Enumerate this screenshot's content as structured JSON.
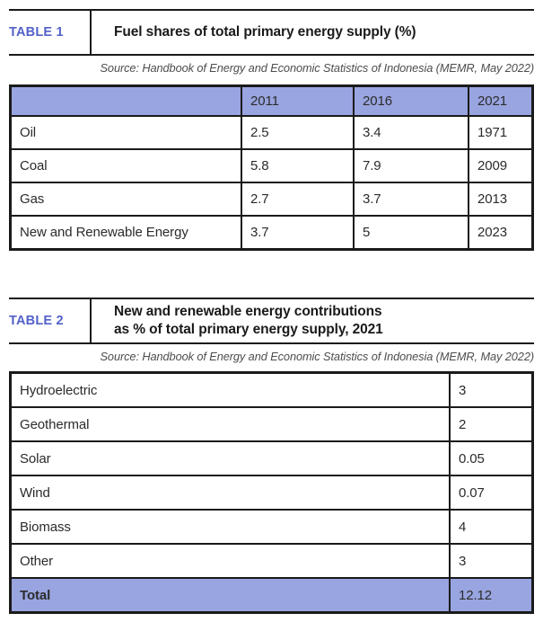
{
  "colors": {
    "header_fill": "#99a5e0",
    "table_label": "#5361c9",
    "border": "#1a1a1a"
  },
  "chart_data": [
    {
      "type": "table",
      "label": "TABLE 1",
      "title": "Fuel shares of total primary energy supply (%)",
      "source": "Source: Handbook of Energy and Economic Statistics of Indonesia (MEMR, May 2022)",
      "columns": [
        "",
        "2011",
        "2016",
        "2021"
      ],
      "rows": [
        [
          "Oil",
          "2.5",
          "3.4",
          "1971"
        ],
        [
          "Coal",
          "5.8",
          "7.9",
          "2009"
        ],
        [
          "Gas",
          "2.7",
          "3.7",
          "2013"
        ],
        [
          "New and Renewable Energy",
          "3.7",
          "5",
          "2023"
        ]
      ]
    },
    {
      "type": "table",
      "label": "TABLE 2",
      "title_lines": [
        "New and renewable energy contributions",
        "as % of total primary energy supply, 2021"
      ],
      "source": "Source: Handbook of Energy and Economic Statistics of Indonesia (MEMR, May 2022)",
      "columns": [
        "",
        ""
      ],
      "rows": [
        [
          "Hydroelectric",
          "3"
        ],
        [
          "Geothermal",
          "2"
        ],
        [
          "Solar",
          "0.05"
        ],
        [
          "Wind",
          "0.07"
        ],
        [
          "Biomass",
          "4"
        ],
        [
          "Other",
          "3"
        ]
      ],
      "total_row": [
        "Total",
        "12.12"
      ]
    }
  ]
}
